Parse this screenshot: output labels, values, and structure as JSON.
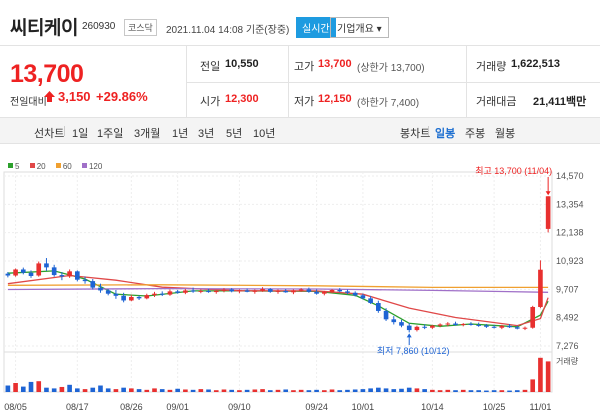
{
  "header": {
    "name": "씨티케이",
    "code": "260930",
    "market": "코스닥",
    "timestamp": "2021.11.04 14:08  기준(장중)",
    "realtime_label": "실시간",
    "company_label": "기업개요 ▾"
  },
  "price": {
    "current": "13,700",
    "change_label": "전일대비",
    "change_value": "3,150",
    "change_pct": "+29.86%",
    "up_color": "#e22222"
  },
  "stats": {
    "prev_close_label": "전일",
    "prev_close": "10,550",
    "high_label": "고가",
    "high": "13,700",
    "high_sub": "(상한가 13,700)",
    "volume_label": "거래량",
    "volume": "1,622,513",
    "open_label": "시가",
    "open": "12,300",
    "low_label": "저가",
    "low": "12,150",
    "low_sub": "(하한가 7,400)",
    "amount_label": "거래대금",
    "amount": "21,411백만"
  },
  "periods": {
    "label": "선차트",
    "items": [
      "1일",
      "1주일",
      "3개월",
      "1년",
      "3년",
      "5년",
      "10년"
    ],
    "candle_label": "봉차트",
    "candle_items": [
      "일봉",
      "주봉",
      "월봉"
    ],
    "active_candle": "일봉"
  },
  "chart_data": {
    "type": "candlestick",
    "legend": [
      {
        "name": "5",
        "color": "#2ca02c"
      },
      {
        "name": "20",
        "color": "#e04848"
      },
      {
        "name": "60",
        "color": "#f0a030"
      },
      {
        "name": "120",
        "color": "#a070c8"
      }
    ],
    "y_ticks": [
      "14,570",
      "13,354",
      "12,138",
      "10,923",
      "9,707",
      "8,492",
      "7,276"
    ],
    "ylim": [
      7276,
      14570
    ],
    "x_labels": [
      "08/05",
      "08/17",
      "08/26",
      "09/01",
      "09/10",
      "09/24",
      "10/01",
      "10/14",
      "10/25",
      "11/01"
    ],
    "volume_label": "거래량",
    "high_annotation": "최고 13,700 (11/04)",
    "low_annotation": "최저 7,860 (10/12)",
    "candles": [
      [
        10380,
        10450,
        10220,
        10300
      ],
      [
        10300,
        10600,
        10250,
        10560
      ],
      [
        10560,
        10640,
        10350,
        10420
      ],
      [
        10420,
        10520,
        10200,
        10280
      ],
      [
        10300,
        10900,
        10250,
        10820
      ],
      [
        10820,
        11050,
        10500,
        10650
      ],
      [
        10650,
        10760,
        10250,
        10320
      ],
      [
        10320,
        10450,
        10100,
        10260
      ],
      [
        10260,
        10560,
        10200,
        10480
      ],
      [
        10480,
        10520,
        10050,
        10120
      ],
      [
        10120,
        10260,
        9950,
        10060
      ],
      [
        10060,
        10150,
        9700,
        9780
      ],
      [
        9780,
        9950,
        9560,
        9660
      ],
      [
        9660,
        9720,
        9450,
        9520
      ],
      [
        9520,
        9680,
        9300,
        9430
      ],
      [
        9430,
        9560,
        9150,
        9230
      ],
      [
        9230,
        9470,
        9200,
        9380
      ],
      [
        9380,
        9440,
        9250,
        9320
      ],
      [
        9320,
        9520,
        9280,
        9460
      ],
      [
        9460,
        9600,
        9380,
        9520
      ],
      [
        9520,
        9620,
        9420,
        9480
      ],
      [
        9480,
        9700,
        9430,
        9620
      ],
      [
        9620,
        9680,
        9520,
        9560
      ],
      [
        9560,
        9720,
        9500,
        9660
      ],
      [
        9660,
        9780,
        9560,
        9610
      ],
      [
        9610,
        9700,
        9540,
        9640
      ],
      [
        9640,
        9720,
        9560,
        9590
      ],
      [
        9590,
        9680,
        9520,
        9640
      ],
      [
        9640,
        9760,
        9580,
        9700
      ],
      [
        9700,
        9760,
        9580,
        9620
      ],
      [
        9620,
        9700,
        9540,
        9660
      ],
      [
        9660,
        9740,
        9580,
        9600
      ],
      [
        9600,
        9700,
        9520,
        9650
      ],
      [
        9650,
        9800,
        9600,
        9720
      ],
      [
        9720,
        9760,
        9560,
        9600
      ],
      [
        9600,
        9700,
        9520,
        9640
      ],
      [
        9640,
        9720,
        9560,
        9580
      ],
      [
        9580,
        9700,
        9500,
        9660
      ],
      [
        9660,
        9760,
        9600,
        9700
      ],
      [
        9700,
        9780,
        9560,
        9600
      ],
      [
        9600,
        9700,
        9480,
        9520
      ],
      [
        9520,
        9640,
        9450,
        9600
      ],
      [
        9600,
        9720,
        9540,
        9680
      ],
      [
        9680,
        9760,
        9580,
        9620
      ],
      [
        9620,
        9700,
        9500,
        9560
      ],
      [
        9560,
        9620,
        9400,
        9450
      ],
      [
        9450,
        9520,
        9280,
        9320
      ],
      [
        9320,
        9420,
        9080,
        9120
      ],
      [
        9120,
        9220,
        8700,
        8780
      ],
      [
        8780,
        8900,
        8350,
        8420
      ],
      [
        8420,
        8560,
        8200,
        8300
      ],
      [
        8300,
        8400,
        8080,
        8150
      ],
      [
        8150,
        8260,
        7860,
        7960
      ],
      [
        7960,
        8150,
        7900,
        8100
      ],
      [
        8100,
        8200,
        8000,
        8060
      ],
      [
        8060,
        8180,
        8010,
        8150
      ],
      [
        8150,
        8250,
        8080,
        8200
      ],
      [
        8200,
        8300,
        8120,
        8240
      ],
      [
        8240,
        8320,
        8150,
        8180
      ],
      [
        8180,
        8260,
        8120,
        8220
      ],
      [
        8220,
        8300,
        8150,
        8180
      ],
      [
        8180,
        8280,
        8100,
        8160
      ],
      [
        8160,
        8220,
        8050,
        8100
      ],
      [
        8100,
        8180,
        8030,
        8060
      ],
      [
        8060,
        8180,
        8000,
        8140
      ],
      [
        8140,
        8220,
        8050,
        8080
      ],
      [
        8080,
        8150,
        7990,
        8020
      ],
      [
        8020,
        8110,
        7960,
        8060
      ],
      [
        8060,
        9000,
        8020,
        8950
      ],
      [
        8950,
        10950,
        8900,
        10550
      ],
      [
        12300,
        13700,
        12150,
        13700
      ]
    ],
    "ma": {
      "5": [
        [
          0,
          10400
        ],
        [
          6,
          10500
        ],
        [
          10,
          10150
        ],
        [
          14,
          9500
        ],
        [
          18,
          9420
        ],
        [
          24,
          9640
        ],
        [
          30,
          9640
        ],
        [
          40,
          9620
        ],
        [
          45,
          9450
        ],
        [
          48,
          9000
        ],
        [
          52,
          8250
        ],
        [
          56,
          8120
        ],
        [
          60,
          8220
        ],
        [
          66,
          8100
        ],
        [
          69,
          8600
        ],
        [
          70,
          9200
        ]
      ],
      "20": [
        [
          0,
          9950
        ],
        [
          8,
          10300
        ],
        [
          14,
          10100
        ],
        [
          20,
          9800
        ],
        [
          30,
          9650
        ],
        [
          40,
          9640
        ],
        [
          46,
          9500
        ],
        [
          52,
          8900
        ],
        [
          58,
          8500
        ],
        [
          66,
          8150
        ],
        [
          69,
          8450
        ],
        [
          70,
          9350
        ]
      ],
      "60": [
        [
          0,
          9880
        ],
        [
          20,
          9900
        ],
        [
          40,
          9860
        ],
        [
          55,
          9790
        ],
        [
          70,
          9790
        ]
      ],
      "120": [
        [
          0,
          9700
        ],
        [
          20,
          9740
        ],
        [
          40,
          9720
        ],
        [
          55,
          9660
        ],
        [
          70,
          9580
        ]
      ]
    },
    "volume": [
      0.18,
      0.25,
      0.15,
      0.28,
      0.3,
      0.12,
      0.1,
      0.14,
      0.2,
      0.1,
      0.08,
      0.12,
      0.18,
      0.1,
      0.08,
      0.12,
      0.1,
      0.08,
      0.06,
      0.1,
      0.08,
      0.06,
      0.09,
      0.07,
      0.06,
      0.08,
      0.07,
      0.05,
      0.07,
      0.06,
      0.05,
      0.06,
      0.07,
      0.08,
      0.05,
      0.06,
      0.07,
      0.05,
      0.06,
      0.05,
      0.06,
      0.05,
      0.07,
      0.05,
      0.06,
      0.07,
      0.08,
      0.1,
      0.12,
      0.1,
      0.08,
      0.09,
      0.12,
      0.1,
      0.08,
      0.06,
      0.05,
      0.06,
      0.05,
      0.06,
      0.05,
      0.05,
      0.04,
      0.05,
      0.05,
      0.04,
      0.05,
      0.06,
      0.35,
      0.95,
      0.85
    ],
    "volume_up": [
      false,
      true,
      false,
      false,
      true,
      false,
      false,
      true,
      false,
      false,
      true,
      false,
      false,
      false,
      true,
      false,
      true,
      false,
      true,
      true,
      false,
      true,
      false,
      true,
      false,
      true,
      false,
      true,
      true,
      false,
      true,
      false,
      true,
      true,
      false,
      true,
      false,
      true,
      true,
      false,
      false,
      true,
      true,
      false,
      false,
      false,
      false,
      false,
      false,
      false,
      false,
      false,
      false,
      true,
      false,
      true,
      true,
      true,
      false,
      true,
      false,
      false,
      false,
      false,
      true,
      false,
      false,
      true,
      true,
      true,
      true
    ]
  }
}
